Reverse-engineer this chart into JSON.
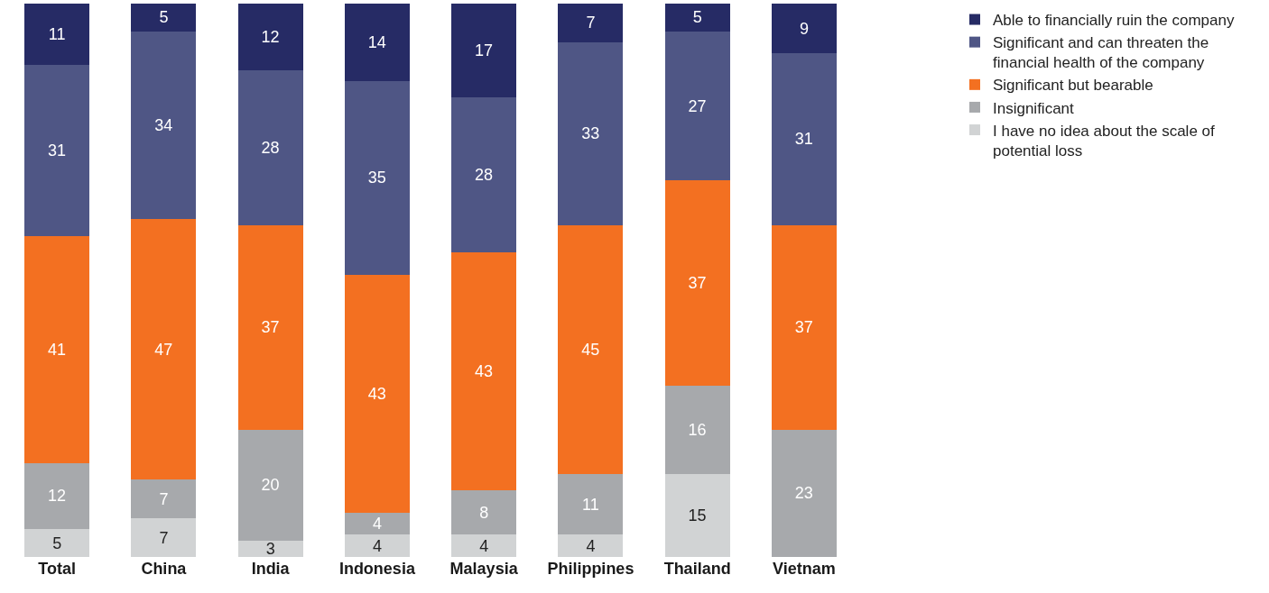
{
  "chart_data": {
    "type": "bar",
    "stacked": true,
    "data_labels": true,
    "legend": "top right",
    "categories": [
      "Total",
      "China",
      "India",
      "Indonesia",
      "Malaysia",
      "Philippines",
      "Thailand",
      "Vietnam"
    ],
    "series": [
      {
        "name": "I have no idea about the scale of potential loss",
        "color": "#d1d3d4",
        "values": [
          5,
          7,
          3,
          4,
          4,
          4,
          15,
          null
        ]
      },
      {
        "name": "Insignificant",
        "color": "#a7a9ac",
        "values": [
          12,
          7,
          20,
          4,
          8,
          11,
          16,
          23
        ]
      },
      {
        "name": "Significant but bearable",
        "color": "#f37021",
        "values": [
          41,
          47,
          37,
          43,
          43,
          45,
          37,
          37
        ]
      },
      {
        "name": "Significant and can threaten the financial health of the company",
        "color": "#4f5685",
        "values": [
          31,
          34,
          28,
          35,
          28,
          33,
          27,
          31
        ]
      },
      {
        "name": "Able to financially ruin the company",
        "color": "#262b65",
        "values": [
          11,
          5,
          12,
          14,
          17,
          7,
          5,
          9
        ]
      }
    ]
  }
}
